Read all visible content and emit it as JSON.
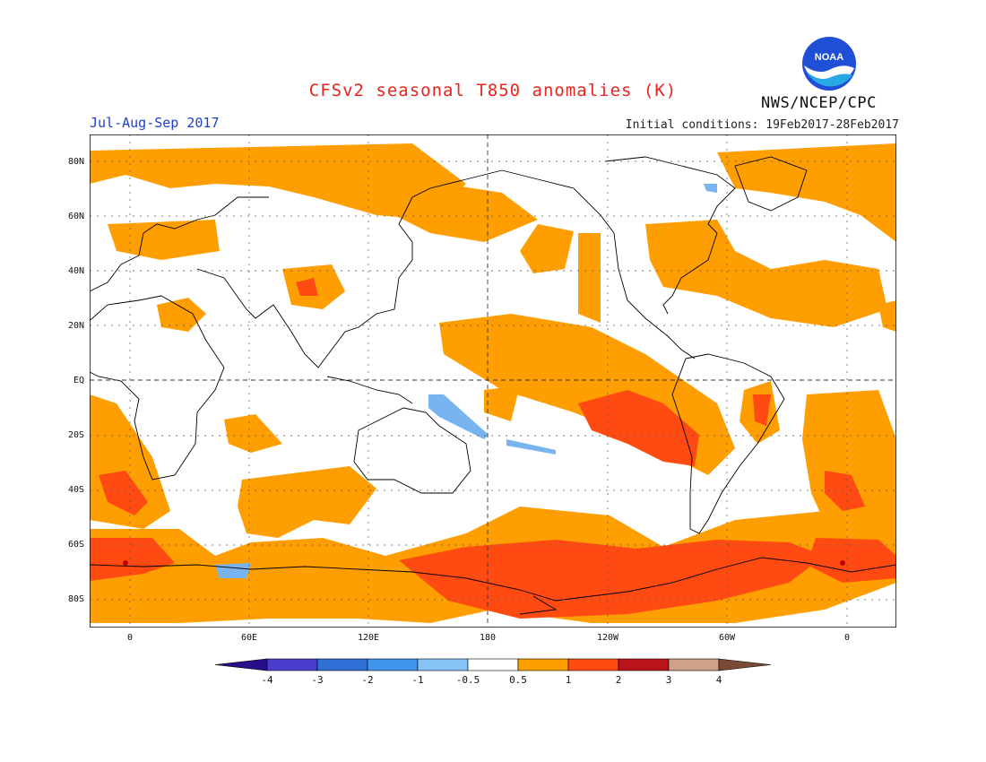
{
  "header": {
    "title": "CFSv2 seasonal T850 anomalies (K)",
    "season": "Jul-Aug-Sep 2017",
    "initial_conditions": "Initial conditions: 19Feb2017-28Feb2017",
    "agency": "NWS/NCEP/CPC",
    "logo_text": "NOAA"
  },
  "map": {
    "projection": "cylindrical-equidistant",
    "lon_ticks": [
      "0",
      "60E",
      "120E",
      "180",
      "120W",
      "60W",
      "0"
    ],
    "lat_ticks": [
      "80N",
      "60N",
      "40N",
      "20N",
      "EQ",
      "20S",
      "40S",
      "60S",
      "80S"
    ],
    "colors": {
      "orange_0p5_1": "#ff9e00",
      "red_1_2": "#ff4a12",
      "darkred_2_3": "#c00000",
      "blue_m0p5_m1": "#78b4f0",
      "coast": "#000000"
    }
  },
  "colorbar": {
    "labels": [
      "-4",
      "-3",
      "-2",
      "-1",
      "-0.5",
      "0.5",
      "1",
      "2",
      "3",
      "4"
    ],
    "colors": [
      "#2a0f8a",
      "#4a3ccc",
      "#2f6fd6",
      "#3f94ec",
      "#88c3f6",
      "#ffffff",
      "#ff9e00",
      "#ff4a12",
      "#b8141a",
      "#cfa08a",
      "#7a4a34"
    ]
  }
}
